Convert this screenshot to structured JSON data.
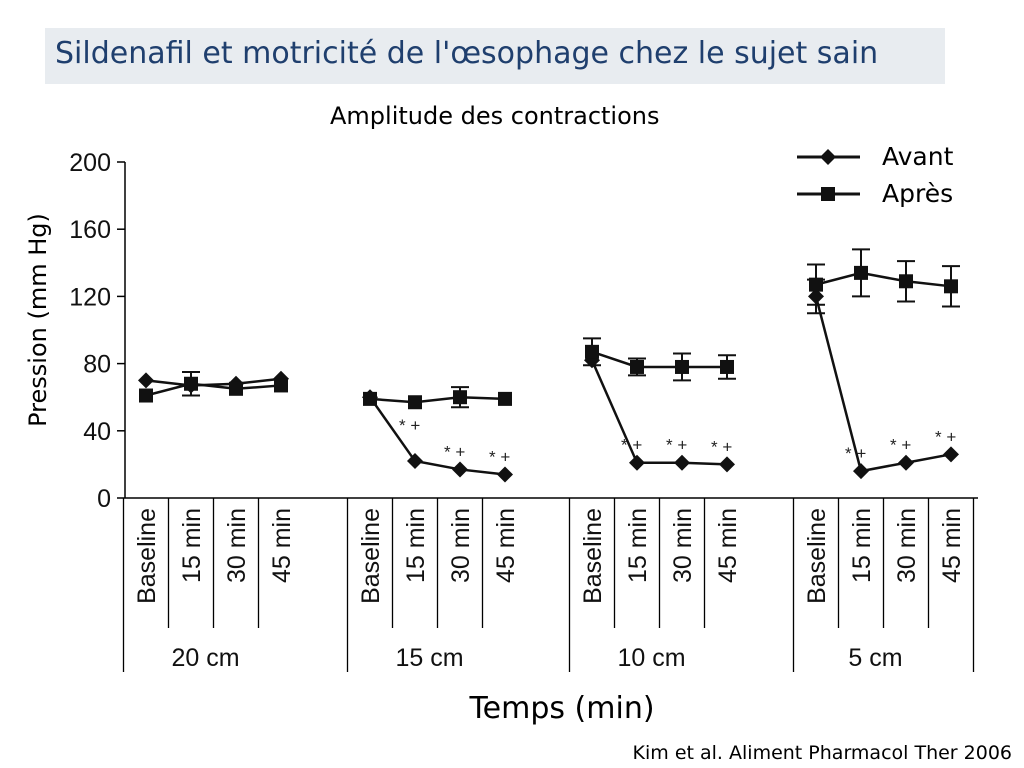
{
  "title": "Sildenafil et motricité de l'œsophage chez le sujet sain",
  "source": "Kim et al. Aliment Pharmacol Ther 2006",
  "chart_data": {
    "type": "line",
    "subtitle": "Amplitude des contractions",
    "ylabel": "Pression (mm Hg)",
    "xlabel": "Temps (min)",
    "ylim": [
      0,
      200
    ],
    "yticks": [
      0,
      40,
      80,
      120,
      160,
      200
    ],
    "categories": [
      "Baseline",
      "15 min",
      "30 min",
      "45 min"
    ],
    "groups": [
      "20 cm",
      "15 cm",
      "10 cm",
      "5 cm"
    ],
    "legend_position": "top-right",
    "series": [
      {
        "name": "Avant",
        "marker": "diamond",
        "values": [
          [
            70,
            67,
            68,
            71
          ],
          [
            60,
            22,
            17,
            14
          ],
          [
            82,
            21,
            21,
            20
          ],
          [
            120,
            16,
            21,
            26
          ]
        ],
        "errors": [
          [
            0,
            0,
            0,
            0
          ],
          [
            0,
            0,
            0,
            0
          ],
          [
            0,
            0,
            0,
            0
          ],
          [
            10,
            0,
            0,
            0
          ]
        ]
      },
      {
        "name": "Après",
        "marker": "square",
        "values": [
          [
            61,
            68,
            65,
            67
          ],
          [
            59,
            57,
            60,
            59
          ],
          [
            87,
            78,
            78,
            78
          ],
          [
            127,
            134,
            129,
            126
          ]
        ],
        "errors": [
          [
            0,
            7,
            0,
            0
          ],
          [
            0,
            0,
            6,
            0
          ],
          [
            8,
            5,
            8,
            7
          ],
          [
            12,
            14,
            12,
            12
          ]
        ]
      }
    ],
    "annotations": [
      [
        [
          "",
          "",
          "",
          ""
        ],
        [
          "",
          "* +",
          "* +",
          "* +"
        ],
        [
          "",
          "* +",
          "* +",
          "* +"
        ],
        [
          "",
          "* +",
          "* +",
          "* +"
        ]
      ]
    ]
  }
}
